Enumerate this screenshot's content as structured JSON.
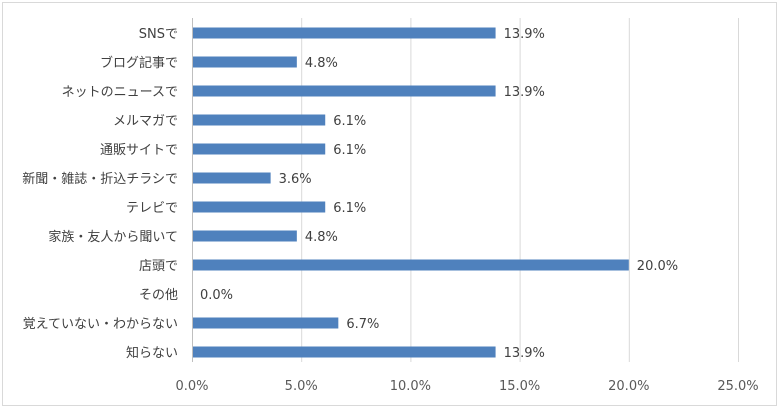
{
  "chart_data": {
    "type": "bar",
    "orientation": "horizontal",
    "categories": [
      "SNSで",
      "ブログ記事で",
      "ネットのニュースで",
      "メルマガで",
      "通販サイトで",
      "新聞・雑誌・折込チラシで",
      "テレビで",
      "家族・友人から聞いて",
      "店頭で",
      "その他",
      "覚えていない・わからない",
      "知らない"
    ],
    "values": [
      13.9,
      4.8,
      13.9,
      6.1,
      6.1,
      3.6,
      6.1,
      4.8,
      20.0,
      0.0,
      6.7,
      13.9
    ],
    "data_labels": [
      "13.9%",
      "4.8%",
      "13.9%",
      "6.1%",
      "6.1%",
      "3.6%",
      "6.1%",
      "4.8%",
      "20.0%",
      "0.0%",
      "6.7%",
      "13.9%"
    ],
    "xlim": [
      0,
      25
    ],
    "x_ticks": [
      0,
      5,
      10,
      15,
      20,
      25
    ],
    "x_tick_labels": [
      "0.0%",
      "5.0%",
      "10.0%",
      "15.0%",
      "20.0%",
      "25.0%"
    ],
    "title": "",
    "xlabel": "",
    "ylabel": "",
    "grid": true,
    "legend": false,
    "bar_color": "#4f81bd"
  }
}
